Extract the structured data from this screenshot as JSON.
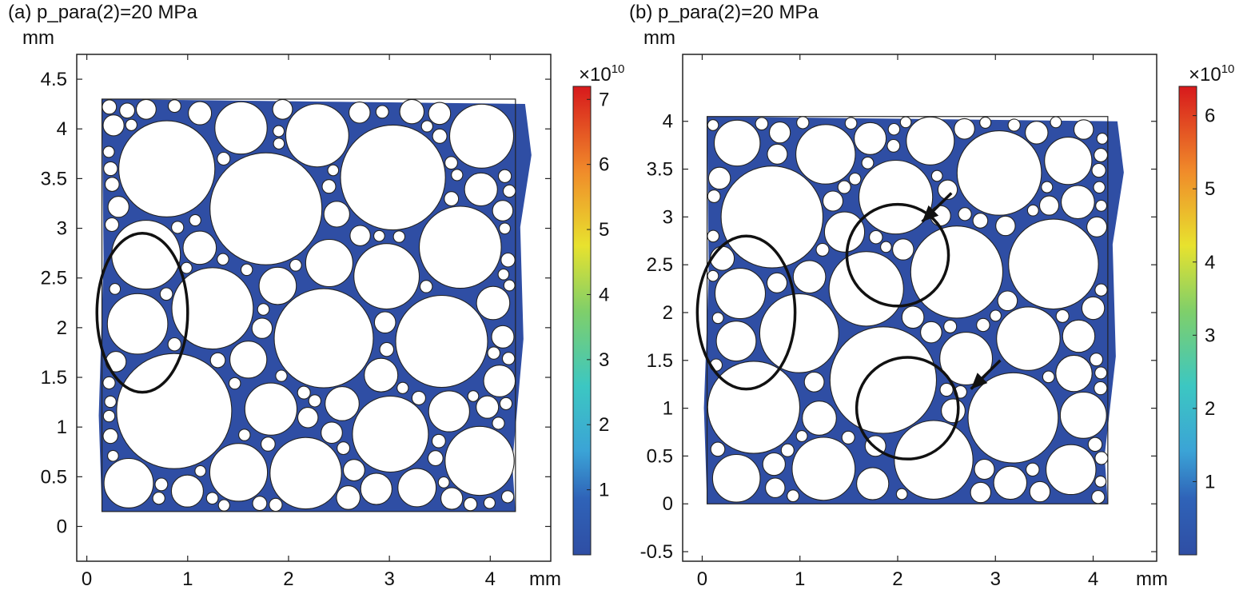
{
  "chart_data": [
    {
      "type": "heatmap",
      "title": "(a) p_para(2)=20 MPa",
      "xlabel": "mm",
      "ylabel": "mm",
      "xlim": [
        -0.1,
        4.6
      ],
      "ylim": [
        -0.35,
        4.75
      ],
      "x_ticks": [
        "0",
        "1",
        "2",
        "3",
        "4"
      ],
      "y_ticks": [
        "0",
        "0.5",
        "1",
        "1.5",
        "2",
        "2.5",
        "3",
        "3.5",
        "4",
        "4.5"
      ],
      "colorbar": {
        "multiplier": "×10",
        "exponent": "10",
        "range": [
          0,
          7.2
        ],
        "ticks": [
          "1",
          "2",
          "3",
          "4",
          "5",
          "6",
          "7"
        ]
      },
      "specimen_bounds": {
        "x": [
          0.15,
          4.25
        ],
        "y": [
          0.15,
          4.3
        ]
      },
      "annotations": [
        {
          "shape": "ellipse",
          "center": [
            0.55,
            2.15
          ],
          "radii": [
            0.45,
            0.8
          ]
        }
      ],
      "colors": {
        "low": "#2f4ea4",
        "mid": "#3cc7c2",
        "mid2": "#e8e22e",
        "high": "#d7191c"
      }
    },
    {
      "type": "heatmap",
      "title": "(b) p_para(2)=20 MPa",
      "xlabel": "mm",
      "ylabel": "mm",
      "xlim": [
        -0.2,
        4.65
      ],
      "ylim": [
        -0.6,
        4.7
      ],
      "x_ticks": [
        "0",
        "1",
        "2",
        "3",
        "4"
      ],
      "y_ticks": [
        "-0.5",
        "0",
        "0.5",
        "1",
        "1.5",
        "2",
        "2.5",
        "3",
        "3.5",
        "4"
      ],
      "colorbar": {
        "multiplier": "×10",
        "exponent": "10",
        "range": [
          0,
          6.4
        ],
        "ticks": [
          "1",
          "2",
          "3",
          "4",
          "5",
          "6"
        ]
      },
      "specimen_bounds": {
        "x": [
          0.05,
          4.15
        ],
        "y": [
          0.0,
          4.05
        ]
      },
      "annotations": [
        {
          "shape": "ellipse",
          "center": [
            0.45,
            2.0
          ],
          "radii": [
            0.5,
            0.8
          ]
        },
        {
          "shape": "circle",
          "center": [
            2.0,
            2.6
          ],
          "radius": 0.52
        },
        {
          "shape": "circle",
          "center": [
            2.1,
            1.0
          ],
          "radius": 0.52
        },
        {
          "shape": "arrow",
          "from": [
            2.55,
            3.25
          ],
          "to": [
            2.25,
            2.95
          ]
        },
        {
          "shape": "arrow",
          "from": [
            3.05,
            1.5
          ],
          "to": [
            2.75,
            1.2
          ]
        }
      ],
      "colors": {
        "low": "#2f4ea4",
        "mid": "#3cc7c2",
        "mid2": "#e8e22e",
        "high": "#d7191c"
      }
    }
  ]
}
